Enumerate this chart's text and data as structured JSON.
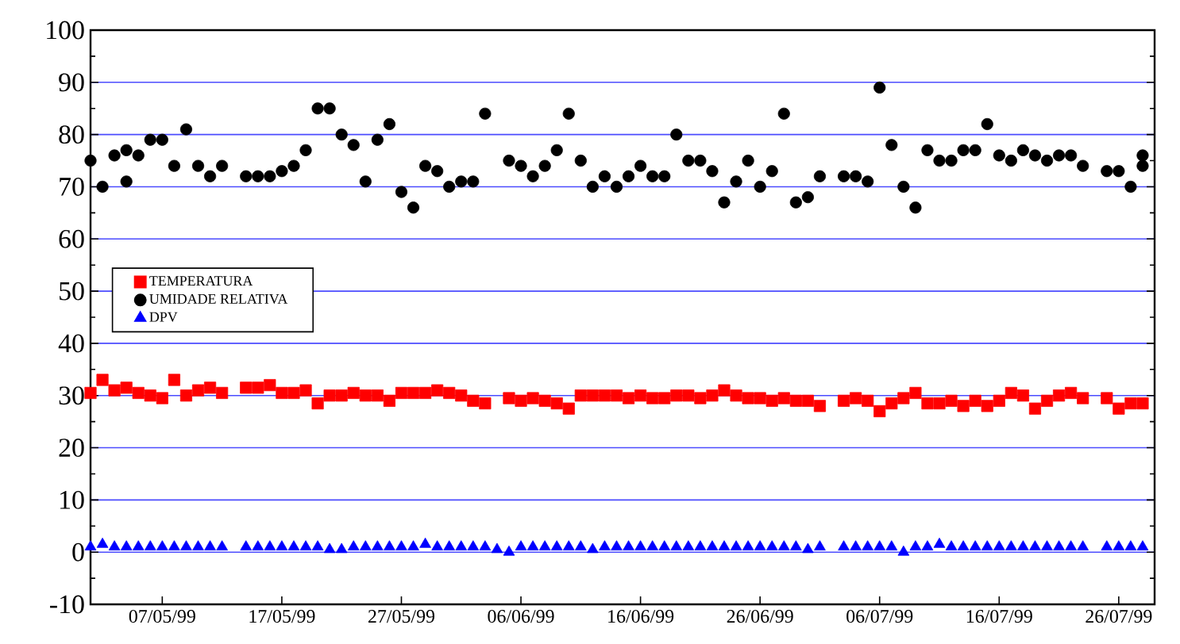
{
  "chart_data": {
    "type": "scatter",
    "xlim": [
      "1999-05-01",
      "1999-07-29"
    ],
    "xticks": [
      {
        "value": "1999-05-07",
        "label": "07/05/99"
      },
      {
        "value": "1999-05-17",
        "label": "17/05/99"
      },
      {
        "value": "1999-05-27",
        "label": "27/05/99"
      },
      {
        "value": "1999-06-06",
        "label": "06/06/99"
      },
      {
        "value": "1999-06-16",
        "label": "16/06/99"
      },
      {
        "value": "1999-06-26",
        "label": "26/06/99"
      },
      {
        "value": "1999-07-06",
        "label": "06/07/99"
      },
      {
        "value": "1999-07-16",
        "label": "16/07/99"
      },
      {
        "value": "1999-07-26",
        "label": "26/07/99"
      }
    ],
    "ylim": [
      -10,
      100
    ],
    "yticks": [
      -10,
      0,
      10,
      20,
      30,
      40,
      50,
      60,
      70,
      80,
      90,
      100
    ],
    "grid": "y",
    "legend": "left",
    "series": [
      {
        "name": "TEMPERATURA",
        "color": "#ff0000",
        "marker": "square",
        "x": [
          "1999-05-01",
          "1999-05-02",
          "1999-05-03",
          "1999-05-04",
          "1999-05-05",
          "1999-05-06",
          "1999-05-07",
          "1999-05-08",
          "1999-05-09",
          "1999-05-10",
          "1999-05-11",
          "1999-05-12",
          "1999-05-14",
          "1999-05-15",
          "1999-05-16",
          "1999-05-17",
          "1999-05-18",
          "1999-05-19",
          "1999-05-20",
          "1999-05-21",
          "1999-05-22",
          "1999-05-23",
          "1999-05-24",
          "1999-05-25",
          "1999-05-26",
          "1999-05-27",
          "1999-05-28",
          "1999-05-29",
          "1999-05-30",
          "1999-05-31",
          "1999-06-01",
          "1999-06-02",
          "1999-06-03",
          "1999-06-05",
          "1999-06-06",
          "1999-06-07",
          "1999-06-08",
          "1999-06-09",
          "1999-06-10",
          "1999-06-11",
          "1999-06-12",
          "1999-06-13",
          "1999-06-14",
          "1999-06-15",
          "1999-06-16",
          "1999-06-17",
          "1999-06-18",
          "1999-06-19",
          "1999-06-20",
          "1999-06-21",
          "1999-06-22",
          "1999-06-23",
          "1999-06-24",
          "1999-06-25",
          "1999-06-26",
          "1999-06-27",
          "1999-06-28",
          "1999-06-29",
          "1999-06-30",
          "1999-07-01",
          "1999-07-03",
          "1999-07-04",
          "1999-07-05",
          "1999-07-06",
          "1999-07-07",
          "1999-07-08",
          "1999-07-09",
          "1999-07-10",
          "1999-07-11",
          "1999-07-12",
          "1999-07-13",
          "1999-07-14",
          "1999-07-15",
          "1999-07-16",
          "1999-07-17",
          "1999-07-18",
          "1999-07-19",
          "1999-07-20",
          "1999-07-21",
          "1999-07-22",
          "1999-07-23",
          "1999-07-25",
          "1999-07-26",
          "1999-07-27",
          "1999-07-28"
        ],
        "values": [
          30.5,
          33,
          31,
          31.5,
          30.5,
          30,
          29.5,
          33,
          30,
          31,
          31.5,
          30.5,
          31.5,
          31.5,
          32,
          30.5,
          30.5,
          31,
          28.5,
          30,
          30,
          30.5,
          30,
          30,
          29,
          30.5,
          30.5,
          30.5,
          31,
          30.5,
          30,
          29,
          28.5,
          29.5,
          29,
          29.5,
          29,
          28.5,
          27.5,
          30,
          30,
          30,
          30,
          29.5,
          30,
          29.5,
          29.5,
          30,
          30,
          29.5,
          30,
          31,
          30,
          29.5,
          29.5,
          29,
          29.5,
          29,
          29,
          28,
          29,
          29.5,
          29,
          27,
          28.5,
          29.5,
          30.5,
          28.5,
          28.5,
          29,
          28,
          29,
          28,
          29,
          30.5,
          30,
          27.5,
          29,
          30,
          30.5,
          29.5,
          29.5,
          27.5,
          28.5,
          28.5
        ]
      },
      {
        "name": "UMIDADE RELATIVA",
        "color": "#000000",
        "marker": "circle",
        "x": [
          "1999-05-01",
          "1999-05-02",
          "1999-05-03",
          "1999-05-04",
          "1999-05-04",
          "1999-05-05",
          "1999-05-06",
          "1999-05-07",
          "1999-05-08",
          "1999-05-09",
          "1999-05-10",
          "1999-05-11",
          "1999-05-12",
          "1999-05-14",
          "1999-05-15",
          "1999-05-16",
          "1999-05-17",
          "1999-05-18",
          "1999-05-19",
          "1999-05-20",
          "1999-05-21",
          "1999-05-22",
          "1999-05-23",
          "1999-05-24",
          "1999-05-25",
          "1999-05-26",
          "1999-05-27",
          "1999-05-28",
          "1999-05-29",
          "1999-05-30",
          "1999-05-31",
          "1999-06-01",
          "1999-06-02",
          "1999-06-03",
          "1999-06-05",
          "1999-06-06",
          "1999-06-07",
          "1999-06-08",
          "1999-06-09",
          "1999-06-10",
          "1999-06-11",
          "1999-06-12",
          "1999-06-13",
          "1999-06-14",
          "1999-06-15",
          "1999-06-16",
          "1999-06-17",
          "1999-06-18",
          "1999-06-19",
          "1999-06-20",
          "1999-06-21",
          "1999-06-22",
          "1999-06-23",
          "1999-06-24",
          "1999-06-25",
          "1999-06-26",
          "1999-06-27",
          "1999-06-28",
          "1999-06-29",
          "1999-06-30",
          "1999-07-01",
          "1999-07-03",
          "1999-07-04",
          "1999-07-05",
          "1999-07-06",
          "1999-07-07",
          "1999-07-08",
          "1999-07-09",
          "1999-07-10",
          "1999-07-11",
          "1999-07-12",
          "1999-07-13",
          "1999-07-14",
          "1999-07-15",
          "1999-07-16",
          "1999-07-17",
          "1999-07-18",
          "1999-07-19",
          "1999-07-20",
          "1999-07-21",
          "1999-07-22",
          "1999-07-23",
          "1999-07-25",
          "1999-07-26",
          "1999-07-27",
          "1999-07-28",
          "1999-07-28"
        ],
        "values": [
          75,
          70,
          76,
          77,
          71,
          76,
          79,
          79,
          74,
          81,
          74,
          72,
          74,
          72,
          72,
          72,
          73,
          74,
          77,
          85,
          85,
          80,
          78,
          71,
          79,
          82,
          69,
          66,
          74,
          73,
          70,
          71,
          71,
          84,
          75,
          74,
          72,
          74,
          77,
          84,
          75,
          70,
          72,
          70,
          72,
          74,
          72,
          72,
          80,
          75,
          75,
          73,
          67,
          71,
          75,
          70,
          73,
          84,
          67,
          68,
          72,
          72,
          72,
          71,
          89,
          78,
          70,
          66,
          77,
          75,
          75,
          77,
          77,
          82,
          76,
          75,
          77,
          76,
          75,
          76,
          76,
          74,
          73,
          73,
          70,
          74,
          76
        ]
      },
      {
        "name": "DPV",
        "color": "#0000ff",
        "marker": "triangle",
        "x": [
          "1999-05-01",
          "1999-05-02",
          "1999-05-03",
          "1999-05-04",
          "1999-05-05",
          "1999-05-06",
          "1999-05-07",
          "1999-05-08",
          "1999-05-09",
          "1999-05-10",
          "1999-05-11",
          "1999-05-12",
          "1999-05-14",
          "1999-05-15",
          "1999-05-16",
          "1999-05-17",
          "1999-05-18",
          "1999-05-19",
          "1999-05-20",
          "1999-05-21",
          "1999-05-22",
          "1999-05-23",
          "1999-05-24",
          "1999-05-25",
          "1999-05-26",
          "1999-05-27",
          "1999-05-28",
          "1999-05-29",
          "1999-05-30",
          "1999-05-31",
          "1999-06-01",
          "1999-06-02",
          "1999-06-03",
          "1999-06-04",
          "1999-06-05",
          "1999-06-06",
          "1999-06-07",
          "1999-06-08",
          "1999-06-09",
          "1999-06-10",
          "1999-06-11",
          "1999-06-12",
          "1999-06-13",
          "1999-06-14",
          "1999-06-15",
          "1999-06-16",
          "1999-06-17",
          "1999-06-18",
          "1999-06-19",
          "1999-06-20",
          "1999-06-21",
          "1999-06-22",
          "1999-06-23",
          "1999-06-24",
          "1999-06-25",
          "1999-06-26",
          "1999-06-27",
          "1999-06-28",
          "1999-06-29",
          "1999-06-30",
          "1999-07-01",
          "1999-07-03",
          "1999-07-04",
          "1999-07-05",
          "1999-07-06",
          "1999-07-07",
          "1999-07-08",
          "1999-07-09",
          "1999-07-10",
          "1999-07-11",
          "1999-07-12",
          "1999-07-13",
          "1999-07-14",
          "1999-07-15",
          "1999-07-16",
          "1999-07-17",
          "1999-07-18",
          "1999-07-19",
          "1999-07-20",
          "1999-07-21",
          "1999-07-22",
          "1999-07-23",
          "1999-07-25",
          "1999-07-26",
          "1999-07-27",
          "1999-07-28"
        ],
        "values": [
          1,
          1.5,
          1,
          1,
          1,
          1,
          1,
          1,
          1,
          1,
          1,
          1,
          1,
          1,
          1,
          1,
          1,
          1,
          1,
          0.5,
          0.5,
          1,
          1,
          1,
          1,
          1,
          1,
          1.5,
          1,
          1,
          1,
          1,
          1,
          0.5,
          0,
          1,
          1,
          1,
          1,
          1,
          1,
          0.5,
          1,
          1,
          1,
          1,
          1,
          1,
          1,
          1,
          1,
          1,
          1,
          1,
          1,
          1,
          1,
          1,
          1,
          0.5,
          1,
          1,
          1,
          1,
          1,
          1,
          0,
          1,
          1,
          1.5,
          1,
          1,
          1,
          1,
          1,
          1,
          1,
          1,
          1,
          1,
          1,
          1,
          1,
          1,
          1,
          1
        ]
      }
    ]
  }
}
